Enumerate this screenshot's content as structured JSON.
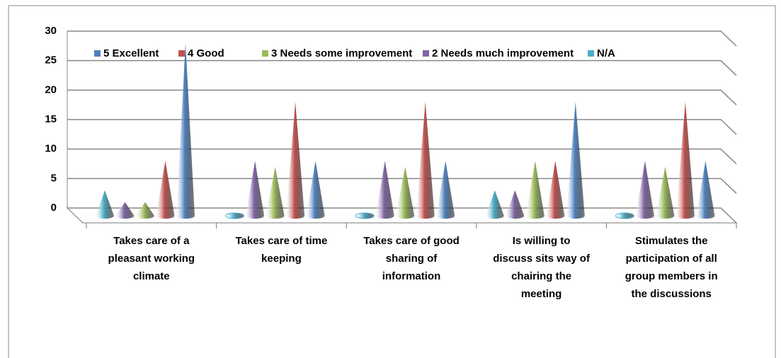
{
  "chart_data": {
    "type": "cone3d",
    "categories": [
      [
        "Takes care of a",
        "pleasant working",
        "climate"
      ],
      [
        "Takes care of time",
        "keeping"
      ],
      [
        "Takes care of good",
        "sharing of",
        "information"
      ],
      [
        "Is willing to",
        "discuss sits way of",
        "chairing the",
        "meeting"
      ],
      [
        "Stimulates the",
        "participation of all",
        "group members in",
        "the discussions"
      ]
    ],
    "series": [
      {
        "name": "5 Excellent",
        "color": "#4f81bd",
        "values": [
          28,
          8,
          8,
          18,
          8
        ]
      },
      {
        "name": "4 Good",
        "color": "#c0504d",
        "values": [
          8,
          18,
          18,
          8,
          18
        ]
      },
      {
        "name": "3 Needs some improvement",
        "color": "#9bbb59",
        "values": [
          1,
          7,
          7,
          8,
          7
        ]
      },
      {
        "name": "2 Needs much improvement",
        "color": "#8064a2",
        "values": [
          1,
          8,
          8,
          3,
          8
        ]
      },
      {
        "name": "N/A",
        "color": "#4bacc6",
        "values": [
          3,
          0,
          0,
          3,
          0
        ]
      }
    ],
    "ylim": [
      0,
      30
    ],
    "yticks": [
      0,
      5,
      10,
      15,
      20,
      25,
      30
    ],
    "grid": true
  }
}
